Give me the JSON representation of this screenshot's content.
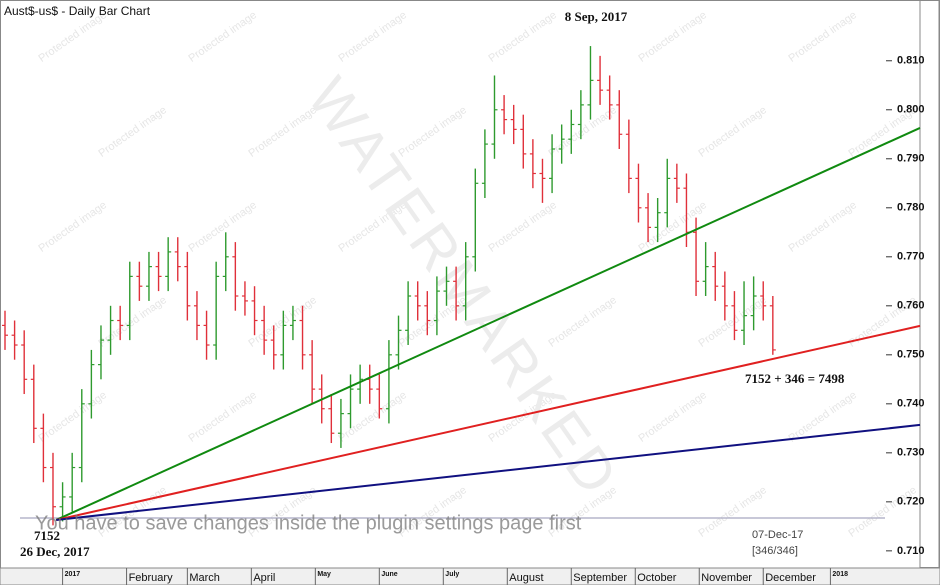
{
  "chart_data": {
    "type": "ohlc",
    "title": "Aust$-us$ - Daily Bar Chart",
    "up_color": "#2e9a2e",
    "down_color": "#e0303a",
    "xlim": [
      -1.5,
      286
    ],
    "ylim": [
      0.7065,
      0.8224
    ],
    "yticks": [
      {
        "value": 0.71,
        "label": "0.710"
      },
      {
        "value": 0.72,
        "label": "0.720"
      },
      {
        "value": 0.73,
        "label": "0.730"
      },
      {
        "value": 0.74,
        "label": "0.740"
      },
      {
        "value": 0.75,
        "label": "0.750"
      },
      {
        "value": 0.76,
        "label": "0.760"
      },
      {
        "value": 0.77,
        "label": "0.770"
      },
      {
        "value": 0.78,
        "label": "0.780"
      },
      {
        "value": 0.79,
        "label": "0.790"
      },
      {
        "value": 0.8,
        "label": "0.800"
      },
      {
        "value": 0.81,
        "label": "0.810"
      }
    ],
    "xticks": [
      {
        "value": 18,
        "label": "2017"
      },
      {
        "value": 38,
        "label": "February"
      },
      {
        "value": 57,
        "label": "March"
      },
      {
        "value": 77,
        "label": "April"
      },
      {
        "value": 97,
        "label": "May"
      },
      {
        "value": 117,
        "label": "June"
      },
      {
        "value": 137,
        "label": "July"
      },
      {
        "value": 157,
        "label": "August"
      },
      {
        "value": 177,
        "label": "September"
      },
      {
        "value": 197,
        "label": "October"
      },
      {
        "value": 217,
        "label": "November"
      },
      {
        "value": 237,
        "label": "December"
      },
      {
        "value": 258,
        "label": "2018"
      }
    ],
    "x": [
      0,
      3,
      6,
      9,
      12,
      15,
      18,
      21,
      24,
      27,
      30,
      33,
      36,
      39,
      42,
      45,
      48,
      51,
      54,
      57,
      60,
      63,
      66,
      69,
      72,
      75,
      78,
      81,
      84,
      87,
      90,
      93,
      96,
      99,
      102,
      105,
      108,
      111,
      114,
      117,
      120,
      123,
      126,
      129,
      132,
      135,
      138,
      141,
      144,
      147,
      150,
      153,
      156,
      159,
      162,
      165,
      168,
      171,
      174,
      177,
      180,
      183,
      186,
      189,
      192,
      195,
      198,
      201,
      204,
      207,
      210,
      213,
      216,
      219,
      222,
      225,
      228,
      231,
      234,
      237,
      240
    ],
    "open": [
      0.756,
      0.754,
      0.752,
      0.745,
      0.735,
      0.727,
      0.719,
      0.721,
      0.727,
      0.74,
      0.748,
      0.753,
      0.757,
      0.756,
      0.766,
      0.764,
      0.768,
      0.766,
      0.771,
      0.768,
      0.76,
      0.756,
      0.752,
      0.766,
      0.77,
      0.762,
      0.761,
      0.757,
      0.753,
      0.75,
      0.756,
      0.757,
      0.75,
      0.743,
      0.739,
      0.734,
      0.738,
      0.743,
      0.745,
      0.743,
      0.739,
      0.75,
      0.755,
      0.762,
      0.76,
      0.757,
      0.763,
      0.765,
      0.76,
      0.77,
      0.785,
      0.793,
      0.8,
      0.798,
      0.796,
      0.791,
      0.787,
      0.786,
      0.792,
      0.794,
      0.797,
      0.801,
      0.806,
      0.804,
      0.801,
      0.795,
      0.786,
      0.78,
      0.776,
      0.779,
      0.786,
      0.784,
      0.775,
      0.765,
      0.768,
      0.764,
      0.76,
      0.755,
      0.758,
      0.762,
      0.76
    ],
    "high": [
      0.759,
      0.757,
      0.755,
      0.748,
      0.738,
      0.73,
      0.724,
      0.73,
      0.743,
      0.751,
      0.756,
      0.76,
      0.76,
      0.769,
      0.769,
      0.771,
      0.771,
      0.774,
      0.774,
      0.771,
      0.763,
      0.759,
      0.769,
      0.775,
      0.773,
      0.765,
      0.764,
      0.76,
      0.756,
      0.759,
      0.76,
      0.76,
      0.753,
      0.746,
      0.742,
      0.741,
      0.746,
      0.748,
      0.748,
      0.746,
      0.753,
      0.758,
      0.765,
      0.765,
      0.763,
      0.766,
      0.768,
      0.768,
      0.773,
      0.788,
      0.796,
      0.807,
      0.803,
      0.801,
      0.799,
      0.794,
      0.79,
      0.795,
      0.797,
      0.8,
      0.804,
      0.813,
      0.811,
      0.807,
      0.804,
      0.798,
      0.789,
      0.783,
      0.782,
      0.79,
      0.789,
      0.787,
      0.778,
      0.773,
      0.771,
      0.767,
      0.763,
      0.765,
      0.766,
      0.765,
      0.762
    ],
    "low": [
      0.751,
      0.749,
      0.742,
      0.732,
      0.724,
      0.7152,
      0.716,
      0.718,
      0.724,
      0.737,
      0.745,
      0.75,
      0.753,
      0.753,
      0.761,
      0.761,
      0.763,
      0.763,
      0.765,
      0.757,
      0.753,
      0.749,
      0.749,
      0.763,
      0.759,
      0.758,
      0.754,
      0.75,
      0.747,
      0.747,
      0.753,
      0.747,
      0.74,
      0.736,
      0.732,
      0.731,
      0.735,
      0.74,
      0.74,
      0.737,
      0.736,
      0.747,
      0.752,
      0.757,
      0.754,
      0.754,
      0.76,
      0.757,
      0.757,
      0.767,
      0.782,
      0.79,
      0.795,
      0.793,
      0.788,
      0.784,
      0.781,
      0.783,
      0.789,
      0.791,
      0.794,
      0.798,
      0.801,
      0.798,
      0.792,
      0.783,
      0.777,
      0.773,
      0.773,
      0.776,
      0.781,
      0.772,
      0.762,
      0.762,
      0.761,
      0.757,
      0.753,
      0.752,
      0.755,
      0.757,
      0.75
    ],
    "close": [
      0.754,
      0.752,
      0.745,
      0.735,
      0.727,
      0.719,
      0.721,
      0.727,
      0.74,
      0.748,
      0.753,
      0.757,
      0.756,
      0.766,
      0.764,
      0.768,
      0.766,
      0.771,
      0.768,
      0.76,
      0.756,
      0.752,
      0.766,
      0.77,
      0.762,
      0.761,
      0.757,
      0.753,
      0.75,
      0.756,
      0.757,
      0.75,
      0.743,
      0.739,
      0.734,
      0.738,
      0.743,
      0.745,
      0.743,
      0.739,
      0.75,
      0.755,
      0.762,
      0.76,
      0.757,
      0.763,
      0.765,
      0.76,
      0.77,
      0.785,
      0.793,
      0.8,
      0.798,
      0.796,
      0.791,
      0.787,
      0.786,
      0.792,
      0.794,
      0.797,
      0.801,
      0.806,
      0.804,
      0.801,
      0.795,
      0.786,
      0.78,
      0.776,
      0.779,
      0.786,
      0.784,
      0.775,
      0.765,
      0.768,
      0.764,
      0.76,
      0.755,
      0.758,
      0.762,
      0.76,
      0.751
    ],
    "lines": [
      {
        "color": "#108a10",
        "x": [
          16,
          286
        ],
        "y": [
          0.7163,
          0.7963
        ]
      },
      {
        "color": "#e02020",
        "x": [
          16,
          286
        ],
        "y": [
          0.7163,
          0.7559
        ]
      },
      {
        "color": "#101080",
        "x": [
          16,
          286
        ],
        "y": [
          0.7163,
          0.7357
        ]
      }
    ],
    "hline": {
      "value": 0.7167,
      "color": "#a8a8c0"
    },
    "annotations": {
      "high_label": "8 Sep, 2017",
      "low_label": "26 Dec, 2017",
      "low_value": "7152",
      "projection": "7152 + 346 = 7498",
      "date": "07-Dec-17",
      "count": "[346/346]"
    },
    "watermark": "WATERMARKED",
    "protected_text": "Protected image",
    "notice": "You have to save changes inside the plugin settings page first"
  }
}
